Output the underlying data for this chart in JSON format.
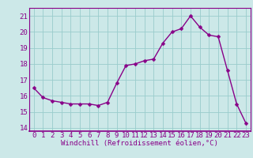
{
  "x": [
    0,
    1,
    2,
    3,
    4,
    5,
    6,
    7,
    8,
    9,
    10,
    11,
    12,
    13,
    14,
    15,
    16,
    17,
    18,
    19,
    20,
    21,
    22,
    23
  ],
  "y": [
    16.5,
    15.9,
    15.7,
    15.6,
    15.5,
    15.5,
    15.5,
    15.4,
    15.6,
    16.8,
    17.9,
    18.0,
    18.2,
    18.3,
    19.3,
    20.0,
    20.2,
    21.0,
    20.3,
    19.8,
    19.7,
    17.6,
    15.5,
    14.3
  ],
  "line_color": "#880088",
  "bg_color": "#cce8e8",
  "grid_color": "#99cccc",
  "xlabel": "Windchill (Refroidissement éolien,°C)",
  "xlim": [
    -0.5,
    23.5
  ],
  "ylim": [
    13.8,
    21.5
  ],
  "xticks": [
    0,
    1,
    2,
    3,
    4,
    5,
    6,
    7,
    8,
    9,
    10,
    11,
    12,
    13,
    14,
    15,
    16,
    17,
    18,
    19,
    20,
    21,
    22,
    23
  ],
  "yticks": [
    14,
    15,
    16,
    17,
    18,
    19,
    20,
    21
  ],
  "xlabel_fontsize": 6.5,
  "tick_fontsize": 6.5,
  "line_width": 1.0,
  "marker_size": 2.5
}
